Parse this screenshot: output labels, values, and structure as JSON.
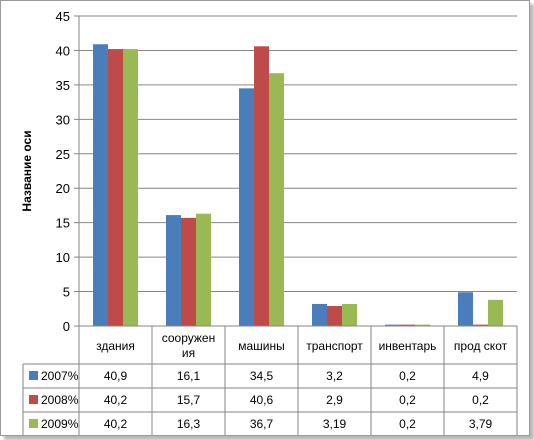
{
  "chart_data": {
    "type": "bar",
    "ylabel": "Название оси",
    "ylim": [
      0,
      45
    ],
    "yticks": [
      0,
      5,
      10,
      15,
      20,
      25,
      30,
      35,
      40,
      45
    ],
    "categories": [
      [
        "здания"
      ],
      [
        "сооружен",
        "ия"
      ],
      [
        "машины"
      ],
      [
        "транспорт"
      ],
      [
        "инвентарь"
      ],
      [
        "прод скот"
      ]
    ],
    "series": [
      {
        "name": "2007%",
        "color": "#4a7ebb",
        "values": [
          40.9,
          16.1,
          34.5,
          3.2,
          0.2,
          4.9
        ],
        "labels": [
          "40,9",
          "16,1",
          "34,5",
          "3,2",
          "0,2",
          "4,9"
        ]
      },
      {
        "name": "2008%",
        "color": "#be4b48",
        "values": [
          40.2,
          15.7,
          40.6,
          2.9,
          0.2,
          0.2
        ],
        "labels": [
          "40,2",
          "15,7",
          "40,6",
          "2,9",
          "0,2",
          "0,2"
        ]
      },
      {
        "name": "2009%",
        "color": "#98b954",
        "values": [
          40.2,
          16.3,
          36.7,
          3.19,
          0.2,
          3.79
        ],
        "labels": [
          "40,2",
          "16,3",
          "36,7",
          "3,19",
          "0,2",
          "3,79"
        ]
      }
    ],
    "grid": true,
    "legend": "data-table"
  }
}
